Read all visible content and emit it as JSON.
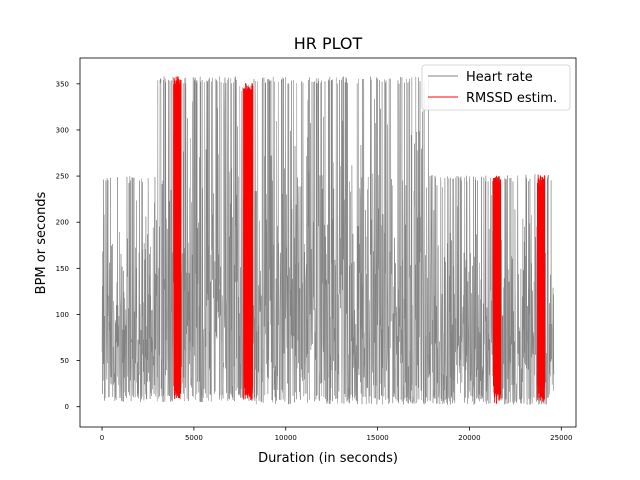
{
  "chart_data": {
    "type": "line",
    "title": "HR PLOT",
    "xlabel": "Duration (in seconds)",
    "ylabel": "BPM or seconds",
    "xlim": [
      -1200,
      25800
    ],
    "ylim": [
      -22,
      378
    ],
    "xticks": [
      0,
      5000,
      10000,
      15000,
      20000,
      25000
    ],
    "yticks": [
      0,
      50,
      100,
      150,
      200,
      250,
      300,
      350
    ],
    "grid": false,
    "legend_position": "top-right",
    "series": [
      {
        "name": "Heart rate",
        "color": "#808080",
        "style": "dense-noisy",
        "x_range": [
          0,
          24600
        ],
        "segments": [
          {
            "x": [
              0,
              3000
            ],
            "min": 5,
            "max": 250
          },
          {
            "x": [
              3000,
              4500
            ],
            "min": 5,
            "max": 358
          },
          {
            "x": [
              4500,
              7500
            ],
            "min": 5,
            "max": 358
          },
          {
            "x": [
              7500,
              8200
            ],
            "min": 5,
            "max": 350
          },
          {
            "x": [
              8200,
              17800
            ],
            "min": 2,
            "max": 358
          },
          {
            "x": [
              17800,
              24600
            ],
            "min": 2,
            "max": 252
          }
        ]
      },
      {
        "name": "RMSSD estim.",
        "color": "#ff0000",
        "style": "bursts",
        "bursts": [
          {
            "x": [
              3900,
              4300
            ],
            "min": 8,
            "max": 358
          },
          {
            "x": [
              7700,
              8200
            ],
            "min": 5,
            "max": 352
          },
          {
            "x": [
              21300,
              21700
            ],
            "min": 3,
            "max": 252
          },
          {
            "x": [
              23700,
              24100
            ],
            "min": 3,
            "max": 252
          }
        ]
      }
    ]
  }
}
